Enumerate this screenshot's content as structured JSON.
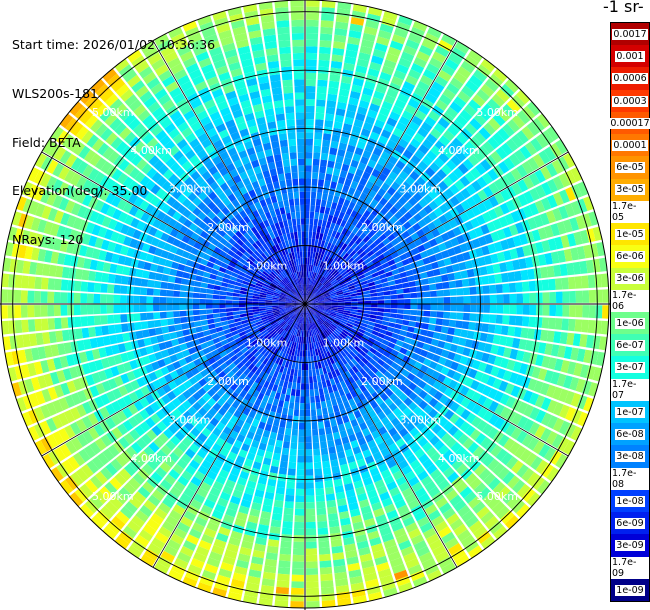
{
  "info": {
    "start_time": "Start time: 2026/01/02 10:36:36",
    "instrument": "WLS200s-181",
    "field": "Field: BETA",
    "elevation": "Elevation(deg): 35.00",
    "nrays": "NRays: 120"
  },
  "colorbar": {
    "title": "-1 sr-",
    "labels": [
      "0.0017",
      "0.001",
      "0.0006",
      "0.0003",
      "0.00017",
      "0.0001",
      "6e-05",
      "3e-05",
      "1.7e-05",
      "1e-05",
      "6e-06",
      "3e-06",
      "1.7e-06",
      "1e-06",
      "6e-07",
      "3e-07",
      "1.7e-07",
      "1e-07",
      "6e-08",
      "3e-08",
      "1.7e-08",
      "1e-08",
      "6e-09",
      "3e-09",
      "1.7e-09",
      "1e-09"
    ],
    "colors": [
      "#b00000",
      "#d40000",
      "#ee1c00",
      "#ff3a00",
      "#ff5a00",
      "#ff7800",
      "#ff9400",
      "#ffad00",
      "#ffc800",
      "#ffe600",
      "#f8ff14",
      "#c8ff3a",
      "#9cff62",
      "#6eff8c",
      "#40ffb4",
      "#14ffe0",
      "#00e6ff",
      "#00c4ff",
      "#00a2ff",
      "#0082ff",
      "#0060ff",
      "#0040ff",
      "#0020ef",
      "#0000d8",
      "#0000b0",
      "#000088"
    ]
  },
  "range_labels": [
    "1.00km",
    "2.00km",
    "3.00km",
    "4.00km",
    "5.00km"
  ],
  "plot": {
    "nrays": 120,
    "gates": 46,
    "max_range_km": 5.2
  }
}
